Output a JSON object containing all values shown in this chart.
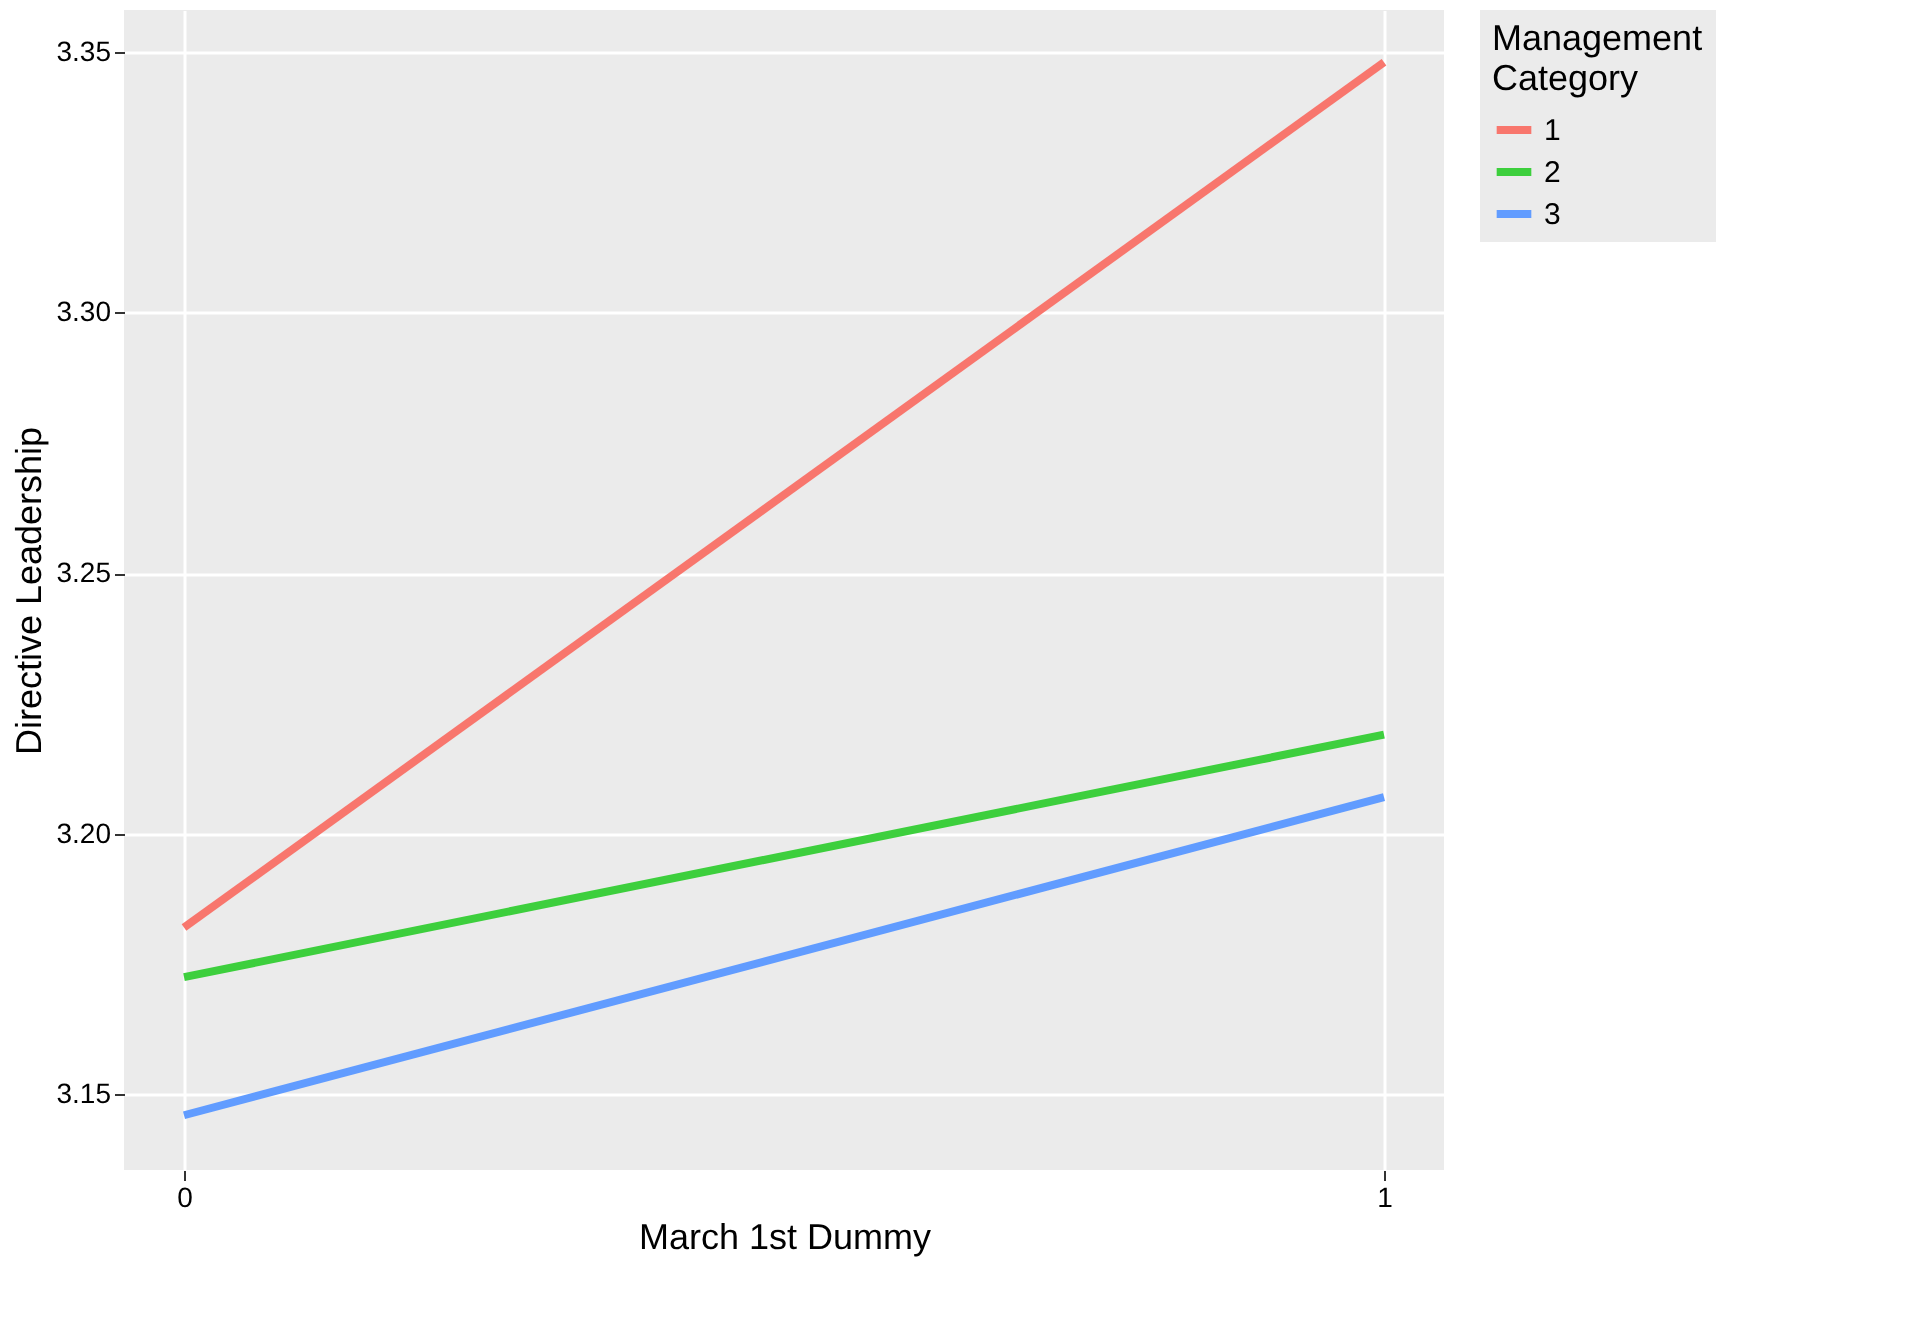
{
  "chart_data": {
    "type": "line",
    "xlabel": "March 1st Dummy",
    "ylabel": "Directive Leadership",
    "legend_title": "Management\n Category",
    "x": [
      0,
      1
    ],
    "series": [
      {
        "name": "1",
        "color": "#f8766d",
        "values": [
          3.182,
          3.348
        ]
      },
      {
        "name": "2",
        "color": "#3dcf3d",
        "values": [
          3.1725,
          3.219
        ]
      },
      {
        "name": "3",
        "color": "#619cff",
        "values": [
          3.146,
          3.207
        ]
      }
    ],
    "xlim": [
      -0.05,
      1.05
    ],
    "xticks": [
      0,
      1
    ],
    "ylim": [
      3.1355,
      3.358
    ],
    "yticks": [
      3.15,
      {
        "value": 3.2,
        "label": "3.20"
      },
      3.25,
      {
        "value": 3.3,
        "label": "3.30"
      },
      3.35
    ],
    "grid": true,
    "legend": "right",
    "marker": "none",
    "line_style": "solid"
  }
}
